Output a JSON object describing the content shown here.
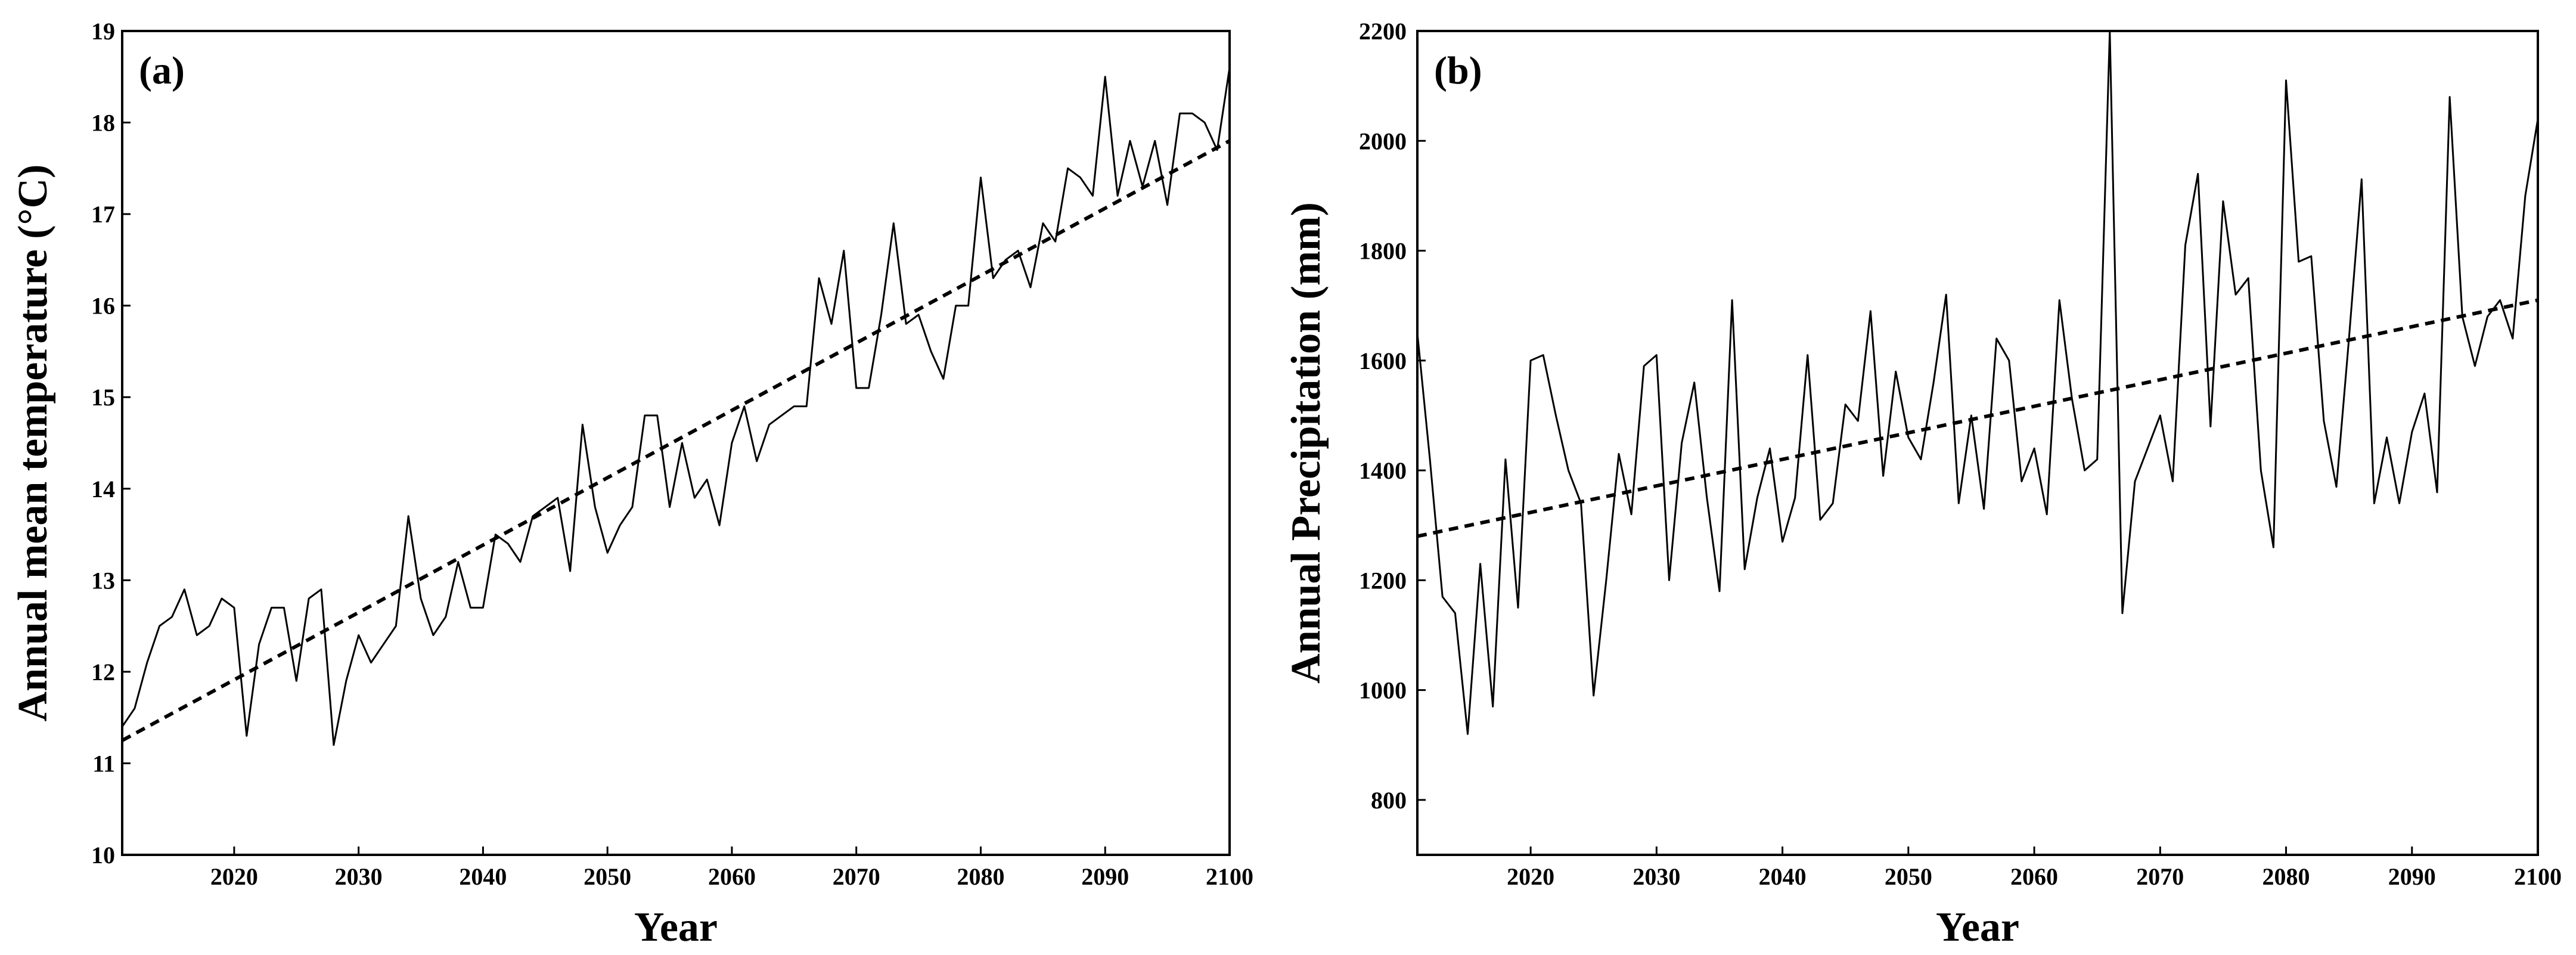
{
  "chart_data": [
    {
      "type": "line",
      "panel_label": "(a)",
      "title": "",
      "xlabel": "Year",
      "ylabel": "Annual mean temperature (°C)",
      "xlim": [
        2011,
        2100
      ],
      "ylim": [
        10,
        19
      ],
      "xticks": [
        2020,
        2030,
        2040,
        2050,
        2060,
        2070,
        2080,
        2090,
        2100
      ],
      "yticks": [
        10,
        11,
        12,
        13,
        14,
        15,
        16,
        17,
        18,
        19
      ],
      "legend": "none",
      "grid": false,
      "series": [
        {
          "name": "Annual mean temperature",
          "style": "solid",
          "x_start": 2011,
          "values": [
            11.4,
            11.6,
            12.1,
            12.5,
            12.6,
            12.9,
            12.4,
            12.5,
            12.8,
            12.7,
            11.3,
            12.3,
            12.7,
            12.7,
            11.9,
            12.8,
            12.9,
            11.2,
            11.9,
            12.4,
            12.1,
            12.3,
            12.5,
            13.7,
            12.8,
            12.4,
            12.6,
            13.2,
            12.7,
            12.7,
            13.5,
            13.4,
            13.2,
            13.7,
            13.8,
            13.9,
            13.1,
            14.7,
            13.8,
            13.3,
            13.6,
            13.8,
            14.8,
            14.8,
            13.8,
            14.5,
            13.9,
            14.1,
            13.6,
            14.5,
            14.9,
            14.3,
            14.7,
            14.8,
            14.9,
            14.9,
            16.3,
            15.8,
            16.6,
            15.1,
            15.1,
            15.9,
            16.9,
            15.8,
            15.9,
            15.5,
            15.2,
            16.0,
            16.0,
            17.4,
            16.3,
            16.5,
            16.6,
            16.2,
            16.9,
            16.7,
            17.5,
            17.4,
            17.2,
            18.5,
            17.2,
            17.8,
            17.3,
            17.8,
            17.1,
            18.1,
            18.1,
            18.0,
            17.7,
            18.6
          ]
        },
        {
          "name": "Linear trend",
          "style": "dashed",
          "x": [
            2011,
            2100
          ],
          "values": [
            11.25,
            17.8
          ]
        }
      ]
    },
    {
      "type": "line",
      "panel_label": "(b)",
      "title": "",
      "xlabel": "Year",
      "ylabel": "Annual Precipitation (mm)",
      "xlim": [
        2011,
        2100
      ],
      "ylim": [
        700,
        2200
      ],
      "xticks": [
        2020,
        2030,
        2040,
        2050,
        2060,
        2070,
        2080,
        2090,
        2100
      ],
      "yticks": [
        800,
        1000,
        1200,
        1400,
        1600,
        1800,
        2000,
        2200
      ],
      "legend": "none",
      "grid": false,
      "series": [
        {
          "name": "Annual precipitation",
          "style": "solid",
          "x_start": 2011,
          "values": [
            1650,
            1420,
            1170,
            1140,
            920,
            1230,
            970,
            1420,
            1150,
            1600,
            1610,
            1500,
            1400,
            1340,
            990,
            1200,
            1430,
            1320,
            1590,
            1610,
            1200,
            1450,
            1560,
            1350,
            1180,
            1710,
            1220,
            1350,
            1440,
            1270,
            1350,
            1610,
            1310,
            1340,
            1520,
            1490,
            1690,
            1390,
            1580,
            1460,
            1420,
            1560,
            1720,
            1340,
            1500,
            1330,
            1640,
            1600,
            1380,
            1440,
            1320,
            1710,
            1530,
            1400,
            1420,
            2200,
            1140,
            1380,
            1440,
            1500,
            1380,
            1810,
            1940,
            1480,
            1890,
            1720,
            1750,
            1400,
            1260,
            2110,
            1780,
            1790,
            1490,
            1370,
            1640,
            1930,
            1340,
            1460,
            1340,
            1470,
            1540,
            1360,
            2080,
            1680,
            1590,
            1680,
            1710,
            1640,
            1900,
            2040
          ]
        },
        {
          "name": "Linear trend",
          "style": "dashed",
          "x": [
            2011,
            2100
          ],
          "values": [
            1280,
            1710
          ]
        }
      ]
    }
  ]
}
